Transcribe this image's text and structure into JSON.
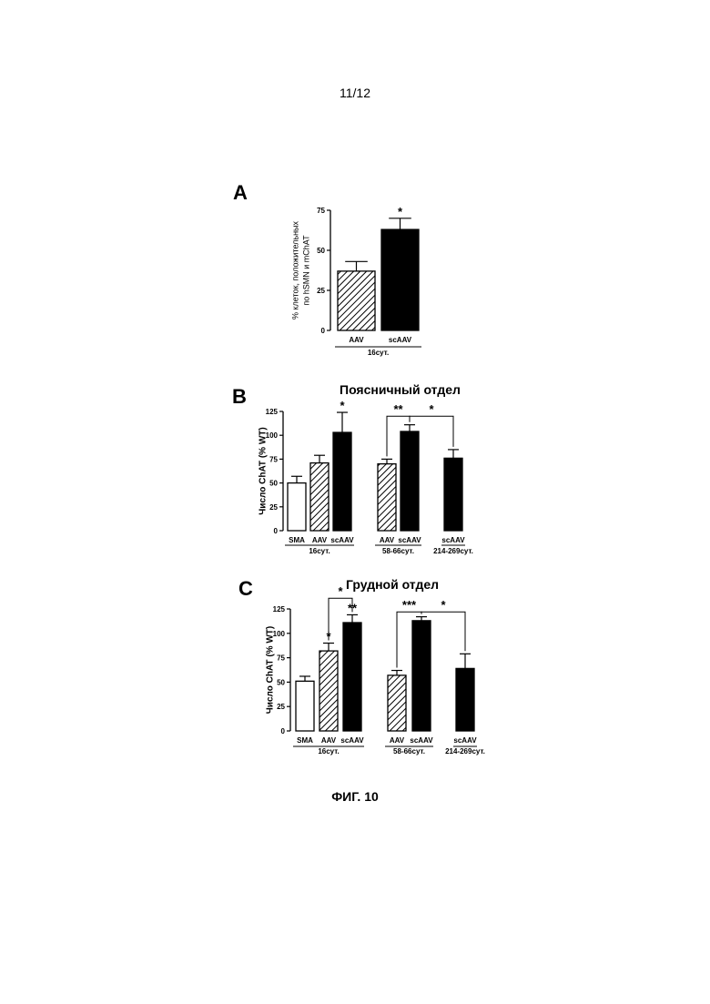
{
  "page": {
    "page_number": "11/12",
    "figure_caption": "ФИГ. 10"
  },
  "chart_data": [
    {
      "panel": "A",
      "type": "bar",
      "title": "",
      "ylabel": [
        "% клеток, положительных",
        "по hSMN и mChAT"
      ],
      "yticks": [
        0,
        25,
        50,
        75
      ],
      "ylim": [
        0,
        75
      ],
      "categories": [
        "AAV",
        "scAAV"
      ],
      "values": [
        37,
        63
      ],
      "errors": [
        6,
        7
      ],
      "fills": [
        "hatched",
        "black"
      ],
      "above": [
        "",
        "*"
      ],
      "groups": [
        {
          "label": "16сут.",
          "from": 0,
          "to": 1
        }
      ],
      "brackets": []
    },
    {
      "panel": "B",
      "type": "bar",
      "title": "Поясничный отдел",
      "ylabel": [
        "Число ChAT (% WT)"
      ],
      "yticks": [
        0,
        25,
        50,
        75,
        100,
        125
      ],
      "ylim": [
        0,
        125
      ],
      "categories": [
        "SMA",
        "AAV",
        "scAAV",
        "AAV",
        "scAAV",
        "scAAV"
      ],
      "values": [
        50,
        71,
        103,
        70,
        104,
        76
      ],
      "errors": [
        7,
        8,
        21,
        5,
        7,
        9
      ],
      "fills": [
        "white",
        "hatched",
        "black",
        "hatched",
        "black",
        "black"
      ],
      "above": [
        "",
        "",
        "*",
        "",
        "",
        ""
      ],
      "groups": [
        {
          "label": "16сут.",
          "from": 0,
          "to": 2
        },
        {
          "label": "58-66сут.",
          "from": 3,
          "to": 4
        },
        {
          "label": "214-269сут.",
          "from": 5,
          "to": 5
        }
      ],
      "brackets": [
        {
          "from": 3,
          "to": 4,
          "y": 120,
          "label": "**"
        },
        {
          "from": 4,
          "to": 5,
          "y": 120,
          "label": "*"
        }
      ]
    },
    {
      "panel": "C",
      "type": "bar",
      "title": "Грудной отдел",
      "ylabel": [
        "Число ChAT (% WT)"
      ],
      "yticks": [
        0,
        25,
        50,
        75,
        100,
        125
      ],
      "ylim": [
        0,
        125
      ],
      "categories": [
        "SMA",
        "AAV",
        "scAAV",
        "AAV",
        "scAAV",
        "scAAV"
      ],
      "values": [
        51,
        82,
        111,
        57,
        113,
        64
      ],
      "errors": [
        5,
        8,
        8,
        5,
        4,
        15
      ],
      "fills": [
        "white",
        "hatched",
        "black",
        "hatched",
        "black",
        "black"
      ],
      "above": [
        "",
        "*",
        "**",
        "",
        "",
        ""
      ],
      "groups": [
        {
          "label": "16сут.",
          "from": 0,
          "to": 2
        },
        {
          "label": "58-66сут.",
          "from": 3,
          "to": 4
        },
        {
          "label": "214-269сут.",
          "from": 5,
          "to": 5
        }
      ],
      "brackets": [
        {
          "from": 1,
          "to": 2,
          "y": 136,
          "label": "*"
        },
        {
          "from": 3,
          "to": 4,
          "y": 122,
          "label": "***"
        },
        {
          "from": 4,
          "to": 5,
          "y": 122,
          "label": "*"
        }
      ]
    }
  ]
}
